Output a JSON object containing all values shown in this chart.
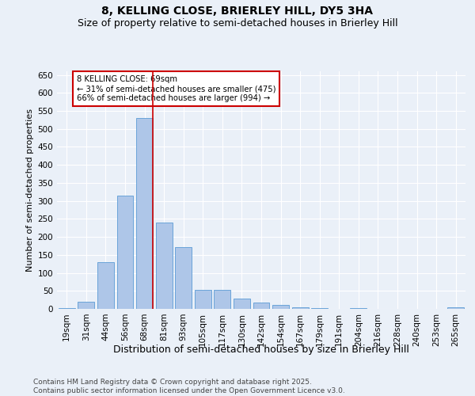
{
  "title": "8, KELLING CLOSE, BRIERLEY HILL, DY5 3HA",
  "subtitle": "Size of property relative to semi-detached houses in Brierley Hill",
  "xlabel": "Distribution of semi-detached houses by size in Brierley Hill",
  "ylabel": "Number of semi-detached properties",
  "categories": [
    "19sqm",
    "31sqm",
    "44sqm",
    "56sqm",
    "68sqm",
    "81sqm",
    "93sqm",
    "105sqm",
    "117sqm",
    "130sqm",
    "142sqm",
    "154sqm",
    "167sqm",
    "179sqm",
    "191sqm",
    "204sqm",
    "216sqm",
    "228sqm",
    "240sqm",
    "253sqm",
    "265sqm"
  ],
  "values": [
    2,
    20,
    130,
    315,
    530,
    240,
    172,
    53,
    53,
    28,
    18,
    10,
    5,
    2,
    1,
    2,
    1,
    0,
    1,
    0,
    4
  ],
  "bar_color": "#aec6e8",
  "bar_edge_color": "#5b9bd5",
  "vline_index": 4,
  "vline_color": "#cc0000",
  "annotation_text": "8 KELLING CLOSE: 69sqm\n← 31% of semi-detached houses are smaller (475)\n66% of semi-detached houses are larger (994) →",
  "annotation_box_color": "#ffffff",
  "annotation_box_edge": "#cc0000",
  "background_color": "#eaf0f8",
  "grid_color": "#ffffff",
  "ylim": [
    0,
    660
  ],
  "yticks": [
    0,
    50,
    100,
    150,
    200,
    250,
    300,
    350,
    400,
    450,
    500,
    550,
    600,
    650
  ],
  "footer_text": "Contains HM Land Registry data © Crown copyright and database right 2025.\nContains public sector information licensed under the Open Government Licence v3.0.",
  "title_fontsize": 10,
  "subtitle_fontsize": 9,
  "xlabel_fontsize": 9,
  "ylabel_fontsize": 8,
  "tick_fontsize": 7.5,
  "footer_fontsize": 6.5
}
